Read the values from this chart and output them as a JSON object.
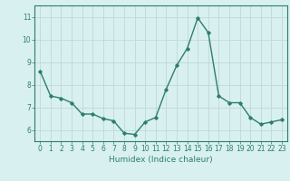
{
  "x": [
    0,
    1,
    2,
    3,
    4,
    5,
    6,
    7,
    8,
    9,
    10,
    11,
    12,
    13,
    14,
    15,
    16,
    17,
    18,
    19,
    20,
    21,
    22,
    23
  ],
  "y": [
    8.6,
    7.5,
    7.4,
    7.2,
    6.7,
    6.7,
    6.5,
    6.4,
    5.85,
    5.8,
    6.35,
    6.55,
    7.8,
    8.85,
    9.6,
    10.95,
    10.3,
    7.5,
    7.2,
    7.2,
    6.55,
    6.25,
    6.35,
    6.45
  ],
  "xlim": [
    -0.5,
    23.5
  ],
  "ylim": [
    5.5,
    11.5
  ],
  "yticks": [
    6,
    7,
    8,
    9,
    10,
    11
  ],
  "xticks": [
    0,
    1,
    2,
    3,
    4,
    5,
    6,
    7,
    8,
    9,
    10,
    11,
    12,
    13,
    14,
    15,
    16,
    17,
    18,
    19,
    20,
    21,
    22,
    23
  ],
  "xlabel": "Humidex (Indice chaleur)",
  "line_color": "#2e7d6e",
  "marker": "D",
  "marker_size": 1.8,
  "bg_color": "#d8f0f0",
  "grid_color": "#c0d8d8",
  "axis_color": "#2e7d6e",
  "tick_color": "#2e7d6e",
  "label_color": "#2e7d6e",
  "xlabel_fontsize": 6.5,
  "tick_fontsize": 5.5,
  "line_width": 1.0
}
